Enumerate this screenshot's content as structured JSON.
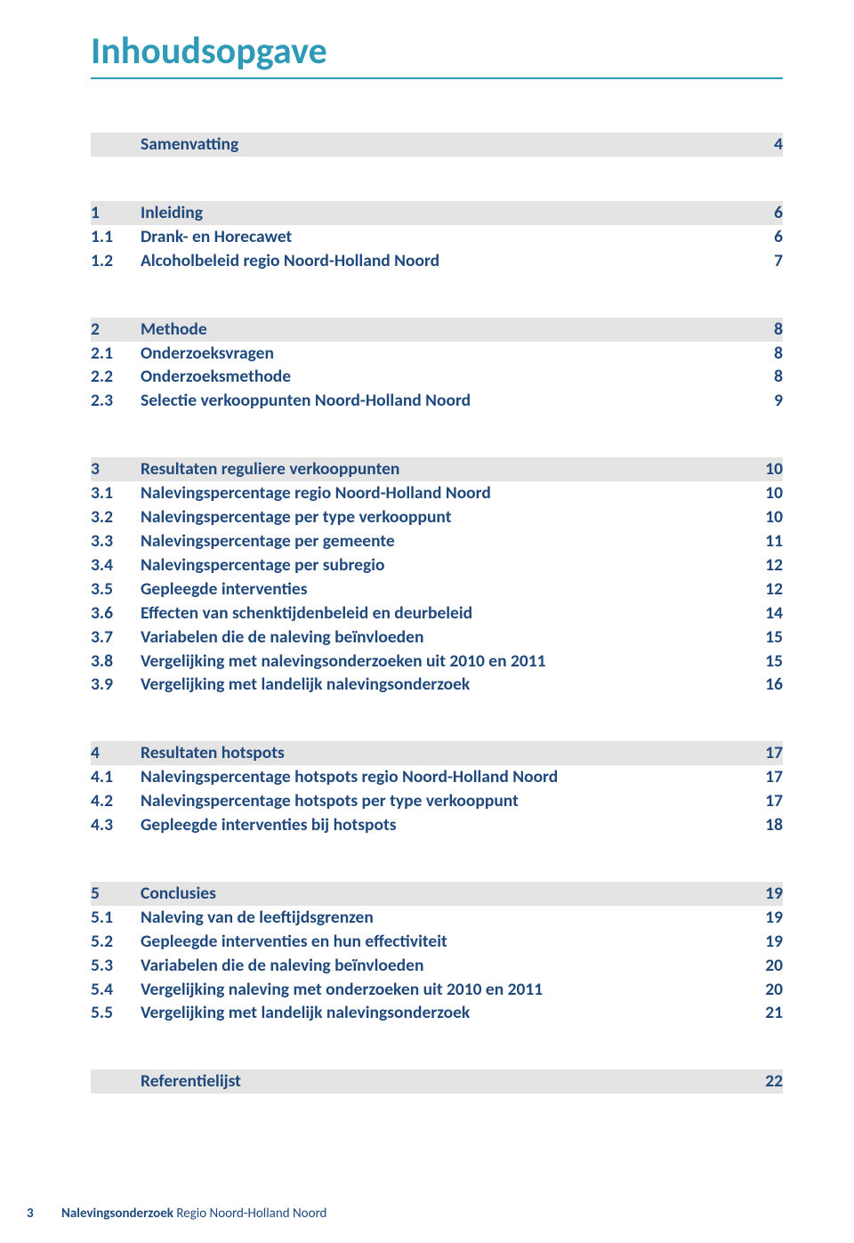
{
  "title": "Inhoudsopgave",
  "colors": {
    "accent": "#2e9ab8",
    "text": "#1f497d",
    "row_bg": "#e4e4e4",
    "page_bg": "#ffffff"
  },
  "toc": {
    "groups": [
      {
        "head": {
          "num": "",
          "title": "Samenvatting",
          "page": "4",
          "shaded": true,
          "single": true
        }
      },
      {
        "head": {
          "num": "1",
          "title": "Inleiding",
          "page": "6",
          "shaded": true
        },
        "items": [
          {
            "num": "1.1",
            "title": "Drank- en Horecawet",
            "page": "6"
          },
          {
            "num": "1.2",
            "title": "Alcoholbeleid regio Noord-Holland Noord",
            "page": "7"
          }
        ]
      },
      {
        "head": {
          "num": "2",
          "title": "Methode",
          "page": "8",
          "shaded": true
        },
        "items": [
          {
            "num": "2.1",
            "title": "Onderzoeksvragen",
            "page": "8"
          },
          {
            "num": "2.2",
            "title": "Onderzoeksmethode",
            "page": "8"
          },
          {
            "num": "2.3",
            "title": "Selectie verkooppunten Noord-Holland Noord",
            "page": "9"
          }
        ]
      },
      {
        "head": {
          "num": "3",
          "title": "Resultaten reguliere verkooppunten",
          "page": "10",
          "shaded": true
        },
        "items": [
          {
            "num": "3.1",
            "title": "Nalevingspercentage regio Noord-Holland Noord",
            "page": "10"
          },
          {
            "num": "3.2",
            "title": "Nalevingspercentage per type verkooppunt",
            "page": "10"
          },
          {
            "num": "3.3",
            "title": "Nalevingspercentage per gemeente",
            "page": "11"
          },
          {
            "num": "3.4",
            "title": "Nalevingspercentage per subregio",
            "page": "12"
          },
          {
            "num": "3.5",
            "title": "Gepleegde interventies",
            "page": "12"
          },
          {
            "num": "3.6",
            "title": "Effecten van schenktijdenbeleid en deurbeleid",
            "page": "14"
          },
          {
            "num": "3.7",
            "title": "Variabelen die de naleving beïnvloeden",
            "page": "15"
          },
          {
            "num": "3.8",
            "title": "Vergelijking met nalevingsonderzoeken uit 2010 en 2011",
            "page": "15"
          },
          {
            "num": "3.9",
            "title": "Vergelijking met landelijk nalevingsonderzoek",
            "page": "16"
          }
        ]
      },
      {
        "head": {
          "num": "4",
          "title": "Resultaten hotspots",
          "page": "17",
          "shaded": true
        },
        "items": [
          {
            "num": "4.1",
            "title": "Nalevingspercentage hotspots regio Noord-Holland Noord",
            "page": "17"
          },
          {
            "num": "4.2",
            "title": "Nalevingspercentage hotspots per type verkooppunt",
            "page": "17"
          },
          {
            "num": "4.3",
            "title": "Gepleegde interventies bij hotspots",
            "page": "18"
          }
        ]
      },
      {
        "head": {
          "num": "5",
          "title": "Conclusies",
          "page": "19",
          "shaded": true
        },
        "items": [
          {
            "num": "5.1",
            "title": "Naleving van de leeftijdsgrenzen",
            "page": "19"
          },
          {
            "num": "5.2",
            "title": "Gepleegde interventies en hun effectiviteit",
            "page": "19"
          },
          {
            "num": "5.3",
            "title": "Variabelen die de naleving beïnvloeden",
            "page": "20"
          },
          {
            "num": "5.4",
            "title": "Vergelijking naleving met onderzoeken uit 2010 en 2011",
            "page": "20"
          },
          {
            "num": "5.5",
            "title": "Vergelijking met landelijk nalevingsonderzoek",
            "page": "21"
          }
        ]
      },
      {
        "head": {
          "num": "",
          "title": "Referentielijst",
          "page": "22",
          "shaded": true,
          "single": true
        }
      }
    ]
  },
  "footer": {
    "page_number": "3",
    "bold": "Nalevingsonderzoek",
    "rest": " Regio Noord-Holland Noord"
  }
}
